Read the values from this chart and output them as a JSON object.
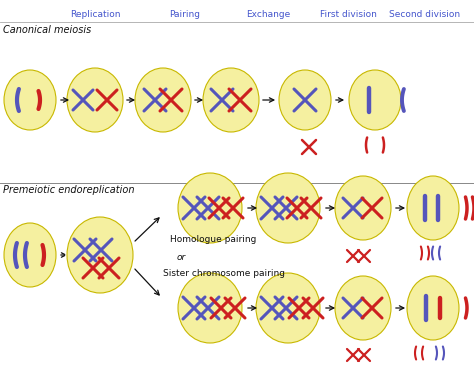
{
  "bg_color": "#ffffff",
  "cell_color": "#f5f0a0",
  "cell_edge_color": "#c8b800",
  "purple": "#5555bb",
  "red": "#cc2020",
  "text_blue": "#4455cc",
  "arrow_color": "#111111",
  "header_labels": [
    "Replication",
    "Pairing",
    "Exchange",
    "First division",
    "Second division"
  ],
  "section1_label": "Canonical meiosis",
  "section2_label": "Premeiotic endoreplication",
  "homologue_label": "Homologue pairing",
  "or_label": "or",
  "sister_label": "Sister chromosome pairing"
}
